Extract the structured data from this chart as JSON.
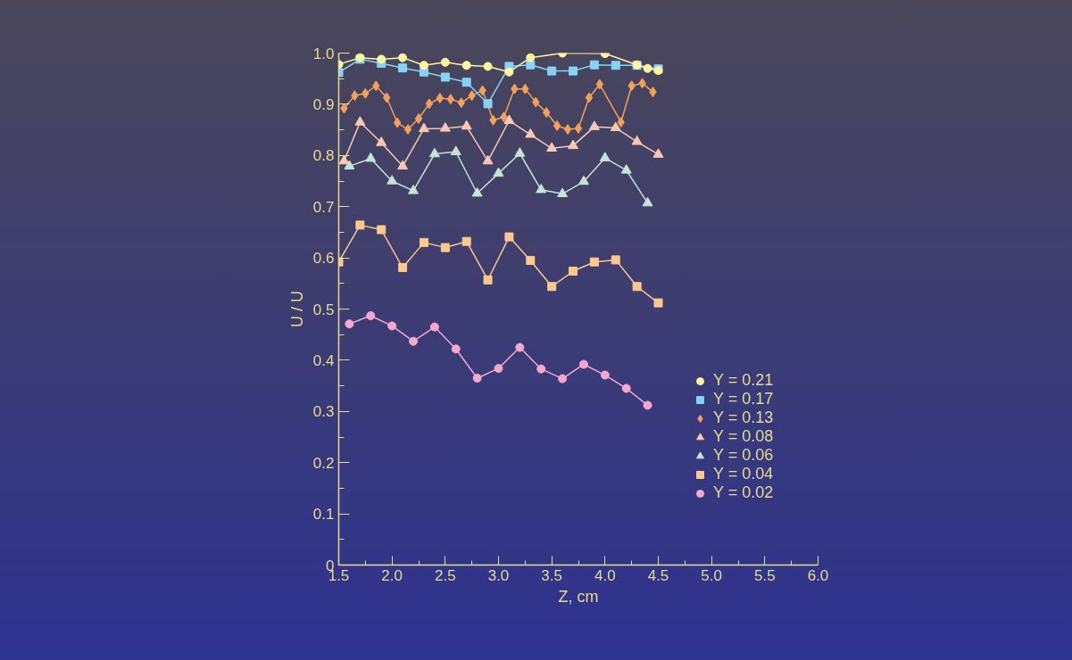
{
  "chart_data": {
    "type": "line",
    "xlabel": "Z, cm",
    "ylabel": "U / U",
    "xlim": [
      1.5,
      6.0
    ],
    "xticks": [
      1.5,
      {
        "value": 2,
        "label": "2.0"
      },
      2.5,
      {
        "value": 3,
        "label": "3.0"
      },
      3.5,
      {
        "value": 4,
        "label": "4.0"
      },
      4.5,
      {
        "value": 5,
        "label": "5.0"
      },
      5.5,
      {
        "value": 6,
        "label": "6.0"
      }
    ],
    "ylim": [
      0,
      1.0
    ],
    "yticks": [
      {
        "value": 0,
        "label": "0"
      },
      0.1,
      0.2,
      0.3,
      0.4,
      0.5,
      0.6,
      0.7,
      0.8,
      0.9,
      {
        "value": 1.0,
        "label": "1.0"
      }
    ],
    "grid": false,
    "legend": "bottom right",
    "series": [
      {
        "name": "Y = 0.21",
        "color": "#fdf5a0",
        "marker": "circle",
        "x": [
          1.5,
          1.7,
          1.9,
          2.1,
          2.3,
          2.5,
          2.7,
          2.9,
          3.1,
          3.3,
          3.6,
          4.0,
          4.3,
          4.4,
          4.5
        ],
        "values": [
          0.978,
          0.991,
          0.988,
          0.991,
          0.976,
          0.982,
          0.976,
          0.974,
          0.963,
          0.991,
          1.0,
          0.999,
          0.977,
          0.97,
          0.966
        ]
      },
      {
        "name": "Y = 0.17",
        "color": "#87d3f8",
        "marker": "square",
        "x": [
          1.5,
          1.7,
          1.9,
          2.1,
          2.3,
          2.5,
          2.7,
          2.9,
          3.1,
          3.3,
          3.5,
          3.7,
          3.9,
          4.1,
          4.3,
          4.5
        ],
        "values": [
          0.962,
          0.988,
          0.98,
          0.971,
          0.963,
          0.953,
          0.943,
          0.901,
          0.974,
          0.977,
          0.965,
          0.965,
          0.977,
          0.976,
          0.976,
          0.969
        ]
      },
      {
        "name": "Y = 0.13",
        "color": "#f5a05a",
        "marker": "diamond",
        "x": [
          1.55,
          1.65,
          1.75,
          1.85,
          1.95,
          2.05,
          2.15,
          2.25,
          2.35,
          2.45,
          2.55,
          2.65,
          2.75,
          2.85,
          2.95,
          3.05,
          3.15,
          3.25,
          3.35,
          3.45,
          3.55,
          3.65,
          3.75,
          3.85,
          3.95,
          4.15,
          4.25,
          4.35,
          4.45
        ],
        "values": [
          0.892,
          0.917,
          0.921,
          0.936,
          0.913,
          0.864,
          0.851,
          0.872,
          0.901,
          0.912,
          0.91,
          0.903,
          0.917,
          0.927,
          0.869,
          0.875,
          0.93,
          0.93,
          0.904,
          0.884,
          0.858,
          0.851,
          0.853,
          0.913,
          0.939,
          0.865,
          0.936,
          0.941,
          0.924
        ]
      },
      {
        "name": "Y = 0.08",
        "color": "#f8c8b4",
        "marker": "triangle",
        "x": [
          1.55,
          1.7,
          1.9,
          2.1,
          2.3,
          2.5,
          2.7,
          2.9,
          3.1,
          3.3,
          3.5,
          3.7,
          3.9,
          4.1,
          4.3,
          4.5
        ],
        "values": [
          0.789,
          0.865,
          0.825,
          0.779,
          0.852,
          0.853,
          0.857,
          0.789,
          0.868,
          0.841,
          0.814,
          0.819,
          0.856,
          0.854,
          0.827,
          0.802
        ]
      },
      {
        "name": "Y = 0.06",
        "color": "#c4e4d4",
        "marker": "triangle",
        "x": [
          1.6,
          1.8,
          2.0,
          2.2,
          2.4,
          2.6,
          2.8,
          3.0,
          3.2,
          3.4,
          3.6,
          3.8,
          4.0,
          4.2,
          4.4
        ],
        "values": [
          0.779,
          0.794,
          0.75,
          0.731,
          0.803,
          0.807,
          0.726,
          0.765,
          0.804,
          0.733,
          0.725,
          0.749,
          0.795,
          0.771,
          0.707
        ]
      },
      {
        "name": "Y = 0.04",
        "color": "#fcc88c",
        "marker": "square",
        "x": [
          1.5,
          1.7,
          1.9,
          2.1,
          2.3,
          2.5,
          2.7,
          2.9,
          3.1,
          3.3,
          3.5,
          3.7,
          3.9,
          4.1,
          4.3,
          4.5
        ],
        "values": [
          0.592,
          0.664,
          0.655,
          0.581,
          0.63,
          0.62,
          0.632,
          0.557,
          0.641,
          0.595,
          0.544,
          0.574,
          0.592,
          0.596,
          0.544,
          0.512
        ]
      },
      {
        "name": "Y = 0.02",
        "color": "#f4a8d0",
        "marker": "circle",
        "x": [
          1.6,
          1.8,
          2.0,
          2.2,
          2.4,
          2.6,
          2.8,
          3.0,
          3.2,
          3.4,
          3.6,
          3.8,
          4.0,
          4.2,
          4.4
        ],
        "values": [
          0.471,
          0.487,
          0.467,
          0.437,
          0.465,
          0.422,
          0.365,
          0.384,
          0.425,
          0.383,
          0.364,
          0.392,
          0.371,
          0.345,
          0.312
        ]
      }
    ]
  }
}
